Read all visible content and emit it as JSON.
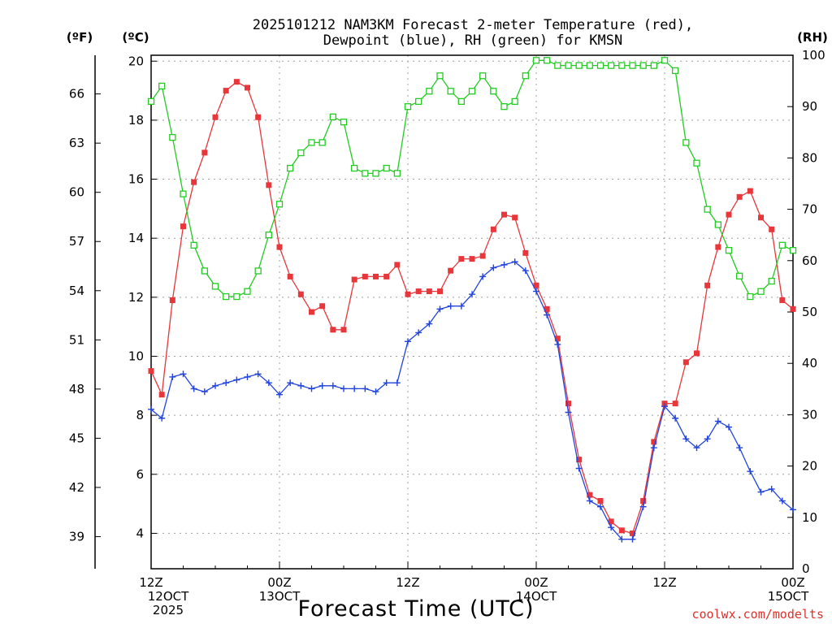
{
  "chart_data": {
    "type": "line",
    "title": [
      "2025101212 NAM3KM Forecast 2-meter Temperature (red),",
      "Dewpoint (blue), RH (green) for KMSN"
    ],
    "xlabel": "Forecast Time (UTC)",
    "credit": "coolwx.com/modelts",
    "unit_labels": {
      "fahrenheit": "(ºF)",
      "celsius": "(ºC)",
      "rh": "(RH)"
    },
    "x_range": [
      0,
      60
    ],
    "y_celsius_range": [
      2.8,
      20.2
    ],
    "y_rh_range": [
      0,
      100
    ],
    "x_ticks": [
      {
        "x": 0,
        "lines": [
          "12Z",
          "12OCT",
          "2025"
        ]
      },
      {
        "x": 12,
        "lines": [
          "00Z",
          "13OCT"
        ]
      },
      {
        "x": 24,
        "lines": [
          "12Z"
        ]
      },
      {
        "x": 36,
        "lines": [
          "00Z",
          "14OCT"
        ]
      },
      {
        "x": 48,
        "lines": [
          "12Z"
        ]
      },
      {
        "x": 60,
        "lines": [
          "00Z",
          "15OCT"
        ]
      }
    ],
    "celsius_ticks": [
      "4",
      "6",
      "8",
      "10",
      "12",
      "14",
      "16",
      "18",
      "20"
    ],
    "rh_ticks": [
      "0",
      "10",
      "20",
      "30",
      "40",
      "50",
      "60",
      "70",
      "80",
      "90",
      "100"
    ],
    "fahrenheit_ticks": [
      "39",
      "42",
      "45",
      "48",
      "51",
      "54",
      "57",
      "60",
      "63",
      "66"
    ],
    "series": [
      {
        "name": "Temperature",
        "axis": "celsius",
        "color": "#e8363a",
        "marker": "filled-square",
        "values": [
          9.5,
          8.7,
          11.9,
          14.4,
          15.9,
          16.9,
          18.1,
          19.0,
          19.3,
          19.1,
          18.1,
          15.8,
          13.7,
          12.7,
          12.1,
          11.5,
          11.7,
          10.9,
          10.9,
          12.6,
          12.7,
          12.7,
          12.7,
          13.1,
          12.1,
          12.2,
          12.2,
          12.2,
          12.9,
          13.3,
          13.3,
          13.4,
          14.3,
          14.8,
          14.7,
          13.5,
          12.4,
          11.6,
          10.6,
          8.4,
          6.5,
          5.3,
          5.1,
          4.4,
          4.1,
          4.0,
          5.1,
          7.1,
          8.4,
          8.4,
          9.8,
          10.1,
          12.4,
          13.7,
          14.8,
          15.4,
          15.6,
          14.7,
          14.3,
          11.9,
          11.6
        ]
      },
      {
        "name": "Dewpoint",
        "axis": "celsius",
        "color": "#2244dd",
        "marker": "plus",
        "values": [
          8.2,
          7.9,
          9.3,
          9.4,
          8.9,
          8.8,
          9.0,
          9.1,
          9.2,
          9.3,
          9.4,
          9.1,
          8.7,
          9.1,
          9.0,
          8.9,
          9.0,
          9.0,
          8.9,
          8.9,
          8.9,
          8.8,
          9.1,
          9.1,
          10.5,
          10.8,
          11.1,
          11.6,
          11.7,
          11.7,
          12.1,
          12.7,
          13.0,
          13.1,
          13.2,
          12.9,
          12.2,
          11.4,
          10.4,
          8.1,
          6.2,
          5.1,
          4.9,
          4.2,
          3.8,
          3.8,
          4.9,
          6.9,
          8.3,
          7.9,
          7.2,
          6.9,
          7.2,
          7.8,
          7.6,
          6.9,
          6.1,
          5.4,
          5.5,
          5.1,
          4.8
        ]
      },
      {
        "name": "RH",
        "axis": "rh",
        "color": "#22cc22",
        "marker": "open-square",
        "values": [
          91,
          94,
          84,
          73,
          63,
          58,
          55,
          53,
          53,
          54,
          58,
          65,
          71,
          78,
          81,
          83,
          83,
          88,
          87,
          78,
          77,
          77,
          78,
          77,
          90,
          91,
          93,
          96,
          93,
          91,
          93,
          96,
          93,
          90,
          91,
          96,
          99,
          99,
          98,
          98,
          98,
          98,
          98,
          98,
          98,
          98,
          98,
          98,
          99,
          97,
          83,
          79,
          70,
          67,
          62,
          57,
          53,
          54,
          56,
          63,
          62
        ]
      }
    ]
  }
}
